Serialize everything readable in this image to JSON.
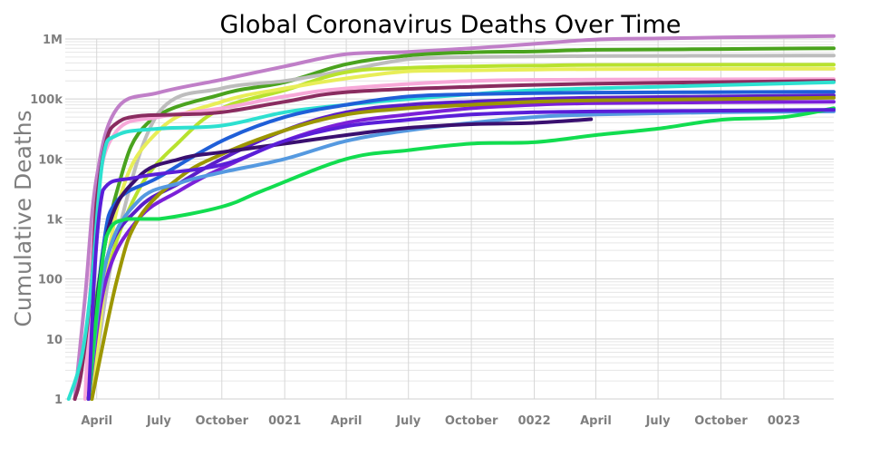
{
  "chart_data": {
    "type": "line",
    "title": "Global Coronavirus Deaths Over Time",
    "xlabel": "",
    "ylabel": "Cumulative Deaths",
    "y_scale": "log",
    "ylim": [
      1,
      1000000
    ],
    "grid": true,
    "legend": "none",
    "x_ticks": [
      {
        "label": "April",
        "date": "2020-04-01"
      },
      {
        "label": "July",
        "date": "2020-07-01"
      },
      {
        "label": "October",
        "date": "2020-10-01"
      },
      {
        "label": "0021",
        "date": "2021-01-01"
      },
      {
        "label": "April",
        "date": "2021-04-01"
      },
      {
        "label": "July",
        "date": "2021-07-01"
      },
      {
        "label": "October",
        "date": "2021-10-01"
      },
      {
        "label": "0022",
        "date": "2022-01-01"
      },
      {
        "label": "April",
        "date": "2022-04-01"
      },
      {
        "label": "July",
        "date": "2022-07-01"
      },
      {
        "label": "October",
        "date": "2022-10-01"
      },
      {
        "label": "0023",
        "date": "2023-01-01"
      }
    ],
    "y_ticks": [
      {
        "label": "1",
        "value": 1
      },
      {
        "label": "10",
        "value": 10
      },
      {
        "label": "100",
        "value": 100
      },
      {
        "label": "1k",
        "value": 1000
      },
      {
        "label": "10k",
        "value": 10000
      },
      {
        "label": "100k",
        "value": 100000
      },
      {
        "label": "1M",
        "value": 1000000
      }
    ],
    "series": [
      {
        "color": "#c07fc8",
        "x": [
          "2020-02-29",
          "2020-03-15",
          "2020-04-01",
          "2020-05-01",
          "2020-07-01",
          "2020-10-01",
          "2021-01-01",
          "2021-04-01",
          "2021-07-01",
          "2021-10-01",
          "2022-01-01",
          "2022-04-01",
          "2022-07-01",
          "2022-10-01",
          "2023-01-01",
          "2023-03-15"
        ],
        "y": [
          1,
          50,
          5000,
          70000,
          128000,
          210000,
          350000,
          560000,
          610000,
          700000,
          830000,
          980000,
          1020000,
          1060000,
          1095000,
          1120000
        ]
      },
      {
        "color": "#4aa31e",
        "x": [
          "2020-03-20",
          "2020-04-01",
          "2020-05-01",
          "2020-06-15",
          "2020-10-01",
          "2021-01-01",
          "2021-04-01",
          "2021-07-01",
          "2021-10-01",
          "2022-01-01",
          "2022-04-01",
          "2022-10-01",
          "2023-03-15"
        ],
        "y": [
          1,
          50,
          3000,
          40000,
          120000,
          190000,
          380000,
          530000,
          600000,
          620000,
          660000,
          680000,
          700000
        ]
      },
      {
        "color": "#bdbdbd",
        "x": [
          "2020-03-20",
          "2020-04-01",
          "2020-05-01",
          "2020-07-01",
          "2020-10-01",
          "2021-01-01",
          "2021-04-01",
          "2021-07-01",
          "2021-10-01",
          "2022-01-01",
          "2022-04-01",
          "2022-10-01",
          "2023-03-15"
        ],
        "y": [
          1,
          5,
          500,
          60000,
          150000,
          200000,
          300000,
          460000,
          500000,
          510000,
          520000,
          525000,
          530000
        ]
      },
      {
        "color": "#b8e22e",
        "x": [
          "2020-03-25",
          "2020-04-15",
          "2020-06-01",
          "2020-08-01",
          "2020-10-01",
          "2021-01-01",
          "2021-04-01",
          "2021-07-01",
          "2021-10-01",
          "2022-01-01",
          "2022-04-01",
          "2022-10-01",
          "2023-03-15"
        ],
        "y": [
          1,
          100,
          3000,
          20000,
          70000,
          140000,
          280000,
          330000,
          350000,
          360000,
          370000,
          372000,
          373000
        ]
      },
      {
        "color": "#e8ee58",
        "x": [
          "2020-03-25",
          "2020-05-01",
          "2020-07-01",
          "2020-10-01",
          "2021-01-01",
          "2021-04-01",
          "2021-07-01",
          "2021-10-01",
          "2022-01-01",
          "2022-04-01",
          "2022-10-01",
          "2023-03-15"
        ],
        "y": [
          1,
          1500,
          30000,
          90000,
          150000,
          220000,
          290000,
          300000,
          310000,
          315000,
          318000,
          320000
        ]
      },
      {
        "color": "#f7a8d8",
        "x": [
          "2020-03-15",
          "2020-04-01",
          "2020-05-01",
          "2020-07-01",
          "2020-10-01",
          "2021-01-01",
          "2021-04-01",
          "2021-10-01",
          "2022-04-01",
          "2023-03-15"
        ],
        "y": [
          1,
          2000,
          30000,
          50000,
          70000,
          110000,
          150000,
          200000,
          210000,
          215000
        ]
      },
      {
        "color": "#8a2c60",
        "x": [
          "2020-02-29",
          "2020-03-10",
          "2020-03-25",
          "2020-04-01",
          "2020-04-15",
          "2020-05-01",
          "2020-06-01",
          "2020-08-01",
          "2020-10-01",
          "2021-01-01",
          "2021-04-01",
          "2021-10-01",
          "2022-04-01",
          "2023-03-15"
        ],
        "y": [
          1,
          3,
          100,
          2000,
          20000,
          40000,
          52000,
          55000,
          60000,
          90000,
          130000,
          160000,
          180000,
          200000
        ]
      },
      {
        "color": "#2de0d0",
        "x": [
          "2020-02-20",
          "2020-03-10",
          "2020-03-25",
          "2020-04-10",
          "2020-05-01",
          "2020-07-01",
          "2020-10-01",
          "2021-01-01",
          "2021-04-01",
          "2021-07-01",
          "2021-10-01",
          "2022-01-01",
          "2022-07-01",
          "2023-03-15"
        ],
        "y": [
          1,
          5,
          100,
          10000,
          25000,
          32000,
          36000,
          60000,
          80000,
          100000,
          120000,
          140000,
          160000,
          190000
        ]
      },
      {
        "color": "#1f5fd8",
        "x": [
          "2020-03-20",
          "2020-04-10",
          "2020-05-01",
          "2020-07-01",
          "2020-10-01",
          "2021-01-01",
          "2021-04-01",
          "2021-07-01",
          "2021-10-01",
          "2022-01-01",
          "2022-04-01",
          "2022-10-01",
          "2023-03-15"
        ],
        "y": [
          1,
          300,
          2000,
          5000,
          20000,
          50000,
          80000,
          110000,
          120000,
          125000,
          128000,
          130000,
          132000
        ]
      },
      {
        "color": "#5a1ec8",
        "x": [
          "2020-03-20",
          "2020-04-15",
          "2020-06-01",
          "2020-08-01",
          "2020-10-01",
          "2021-01-01",
          "2021-04-01",
          "2021-07-01",
          "2021-10-01",
          "2022-01-01",
          "2022-04-01",
          "2022-10-01",
          "2023-03-15"
        ],
        "y": [
          1,
          200,
          1500,
          4000,
          10000,
          30000,
          60000,
          80000,
          90000,
          100000,
          105000,
          110000,
          115000
        ]
      },
      {
        "color": "#7b20d8",
        "x": [
          "2020-03-20",
          "2020-04-15",
          "2020-06-01",
          "2020-08-01",
          "2020-10-01",
          "2021-01-01",
          "2021-04-01",
          "2021-07-01",
          "2021-10-01",
          "2022-01-01",
          "2022-04-01",
          "2022-10-01",
          "2023-03-15"
        ],
        "y": [
          1,
          100,
          1000,
          3000,
          7000,
          20000,
          40000,
          55000,
          70000,
          80000,
          85000,
          88000,
          90000
        ]
      },
      {
        "color": "#9c9600",
        "x": [
          "2020-03-25",
          "2020-05-01",
          "2020-06-01",
          "2020-08-01",
          "2020-10-01",
          "2021-01-01",
          "2021-04-01",
          "2021-07-01",
          "2021-10-01",
          "2022-01-01",
          "2022-04-01",
          "2022-10-01",
          "2023-03-15"
        ],
        "y": [
          1,
          100,
          1000,
          5000,
          12000,
          30000,
          55000,
          70000,
          80000,
          90000,
          95000,
          100000,
          105000
        ]
      },
      {
        "color": "#5599e0",
        "x": [
          "2020-03-20",
          "2020-04-15",
          "2020-06-01",
          "2020-08-01",
          "2020-10-01",
          "2021-01-01",
          "2021-04-01",
          "2021-07-01",
          "2021-10-01",
          "2022-01-01",
          "2022-04-01",
          "2022-10-01",
          "2023-03-15"
        ],
        "y": [
          1,
          200,
          2000,
          4000,
          6000,
          10000,
          20000,
          30000,
          40000,
          50000,
          55000,
          60000,
          62000
        ]
      },
      {
        "color": "#3a1070",
        "x": [
          "2020-03-20",
          "2020-04-15",
          "2020-06-01",
          "2020-08-01",
          "2020-10-01",
          "2021-01-01",
          "2021-04-01",
          "2021-07-01",
          "2021-10-01",
          "2022-01-01",
          "2022-03-25"
        ],
        "y": [
          1,
          500,
          5000,
          10000,
          13000,
          18000,
          25000,
          33000,
          38000,
          40000,
          46000
        ]
      },
      {
        "color": "#12dd50",
        "x": [
          "2020-03-20",
          "2020-04-15",
          "2020-05-15",
          "2020-07-01",
          "2020-10-01",
          "2020-12-01",
          "2021-04-01",
          "2021-07-01",
          "2021-10-01",
          "2022-01-01",
          "2022-04-01",
          "2022-07-01",
          "2022-10-01",
          "2023-01-01",
          "2023-03-15"
        ],
        "y": [
          1,
          500,
          1000,
          1000,
          1600,
          3000,
          10000,
          14000,
          18000,
          19000,
          25000,
          32000,
          45000,
          50000,
          70000
        ]
      },
      {
        "color": "#5a1ed8",
        "x": [
          "2020-03-20",
          "2020-04-10",
          "2020-06-01",
          "2020-10-01",
          "2021-01-01",
          "2021-04-01",
          "2021-07-01",
          "2021-10-01",
          "2022-01-01",
          "2022-04-01",
          "2022-10-01",
          "2023-03-15"
        ],
        "y": [
          1,
          3000,
          5000,
          8000,
          20000,
          35000,
          45000,
          55000,
          60000,
          62000,
          64000,
          66000
        ]
      }
    ]
  }
}
